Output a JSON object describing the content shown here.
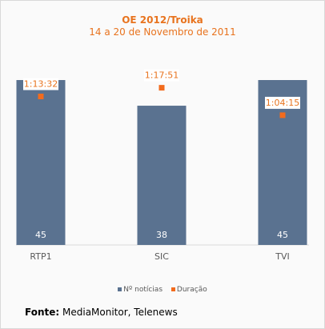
{
  "chart_data": {
    "type": "bar",
    "title": "OE 2012/Troika",
    "subtitle": "14 a 20 de Novembro de 2011",
    "categories": [
      "RTP1",
      "SIC",
      "TVI"
    ],
    "series": [
      {
        "name": "Nº notícias",
        "values": [
          45,
          38,
          45
        ],
        "color": "#5a7290"
      },
      {
        "name": "Duração",
        "values": [
          "1:13:32",
          "1:17:51",
          "1:04:15"
        ],
        "seconds": [
          4412,
          4671,
          3855
        ],
        "color": "#f26b1d"
      }
    ],
    "ylim": [
      0,
      45
    ],
    "y2lim": [
      0,
      4900
    ],
    "grid": false,
    "legend": "bottom"
  },
  "source": {
    "label": "Fonte:",
    "text": "MediaMonitor, Telenews"
  }
}
